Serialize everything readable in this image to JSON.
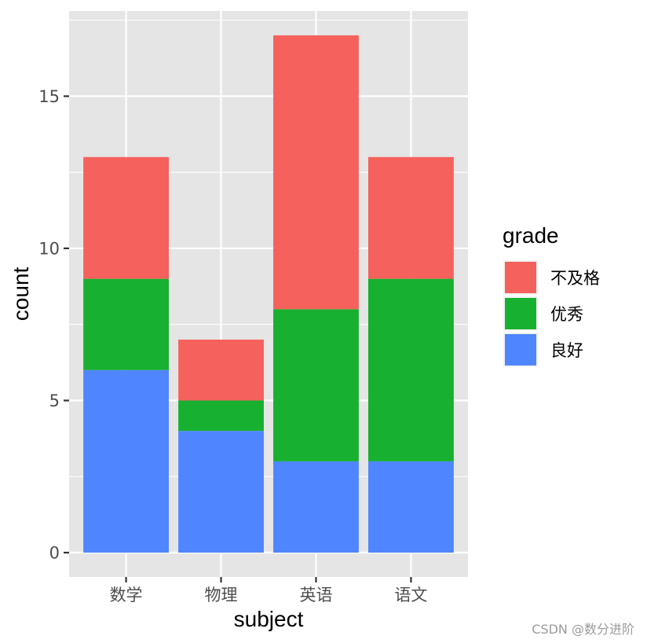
{
  "chart_data": {
    "type": "bar",
    "stacked": true,
    "title": "",
    "xlabel": "subject",
    "ylabel": "count",
    "categories": [
      "数学",
      "物理",
      "英语",
      "语文"
    ],
    "series": [
      {
        "name": "良好",
        "values": [
          6,
          4,
          3,
          3
        ],
        "color": "#4f86ff"
      },
      {
        "name": "优秀",
        "values": [
          3,
          1,
          5,
          6
        ],
        "color": "#18b030"
      },
      {
        "name": "不及格",
        "values": [
          4,
          2,
          9,
          4
        ],
        "color": "#f5615c"
      }
    ],
    "yticks": [
      0,
      5,
      10,
      15
    ],
    "ylim": [
      -0.8,
      17.8
    ],
    "grid": true,
    "legend": {
      "title": "grade",
      "placement": "right",
      "entries": [
        {
          "label": "不及格",
          "color": "#f5615c"
        },
        {
          "label": "优秀",
          "color": "#18b030"
        },
        {
          "label": "良好",
          "color": "#4f86ff"
        }
      ]
    },
    "panel_background": "#e5e5e5",
    "grid_color": "#ffffff"
  },
  "watermark": "CSDN @数分进阶"
}
